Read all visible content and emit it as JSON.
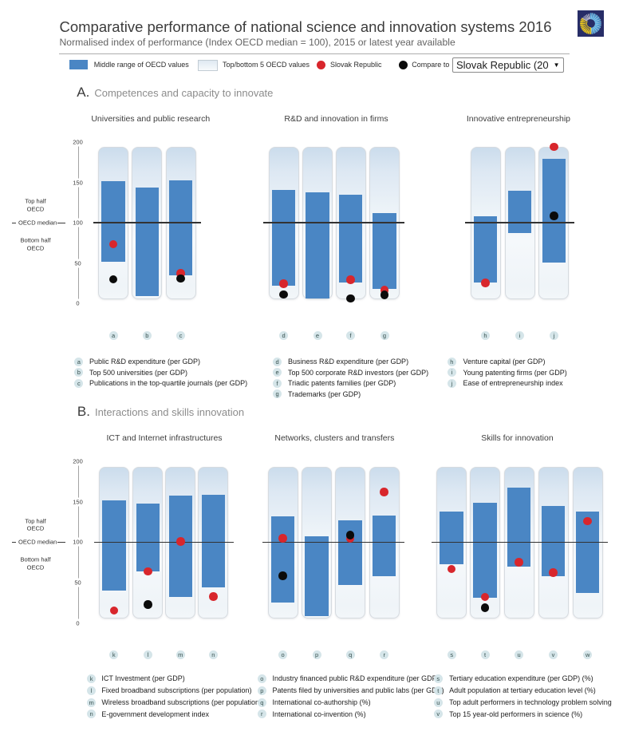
{
  "header": {
    "title": "Comparative performance of national science and innovation systems 2016",
    "subtitle": "Normalised index of performance (Index OECD median = 100), 2015 or latest year available",
    "logo": "oecd-sunburst-logo"
  },
  "legend": {
    "middle_range_label": "Middle range of OECD values",
    "top_bottom_label": "Top/bottom 5 OECD values",
    "country_label": "Slovak Republic",
    "compare_label": "Compare to",
    "compare_selected": "Slovak Republic (20"
  },
  "colors": {
    "bar_blue": "#4a86c4",
    "dot_red": "#d8262c",
    "dot_black": "#0b0b0b",
    "capsule_top": "#cbdcec",
    "capsule_bottom": "#f2f6f9",
    "median_line": "#333333",
    "logo_navy": "#272d67",
    "logo_yellow": "#f3cf19",
    "logo_blue": "#4d9fd9",
    "logo_lightblue": "#8ecbe9"
  },
  "axis": {
    "ticks": [
      200,
      150,
      100,
      50,
      0
    ],
    "top_half_line1": "Top half",
    "top_half_line2": "OECD",
    "median_label": "OECD median",
    "bottom_half_line1": "Bottom half",
    "bottom_half_line2": "OECD"
  },
  "chart_data": {
    "type": "bar",
    "title": "Comparative performance of national science and innovation systems 2016",
    "ylabel": "Normalised index (OECD median = 100)",
    "ylim": [
      0,
      200
    ],
    "legend_position": "top",
    "grid": false,
    "series_meaning": {
      "range": "Middle range of OECD values (normalised index, min-max of middle range)",
      "band": "Top/bottom 5 OECD values (capsule background)",
      "red": "Slovak Republic",
      "black": "Compare to (selected country/year)"
    },
    "sections": [
      {
        "label": "A.",
        "heading": "Competences and capacity to innovate",
        "groups": [
          {
            "title": "Universities and public research",
            "bars": [
              {
                "letter": "a",
                "note": "Public R&D expenditure (per GDP)",
                "range": [
                  51.5,
                  151.5
                ],
                "red": 73.5,
                "black": 30
              },
              {
                "letter": "b",
                "note": "Top 500 universities (per GDP)",
                "range": [
                  9.5,
                  144
                ],
                "red": null,
                "black": null
              },
              {
                "letter": "c",
                "note": "Publications in the top-quartile journals (per GDP)",
                "range": [
                  35,
                  152.5
                ],
                "red": 37.5,
                "black": 31
              }
            ]
          },
          {
            "title": "R&D and innovation in firms",
            "bars": [
              {
                "letter": "d",
                "note": "Business R&D expenditure (per GDP)",
                "range": [
                  22.5,
                  141
                ],
                "red": 24.5,
                "black": 11.5
              },
              {
                "letter": "e",
                "note": "Top 500 corporate R&D investors (per GDP)",
                "range": [
                  6.5,
                  138
                ],
                "red": null,
                "black": null
              },
              {
                "letter": "f",
                "note": "Triadic patents families (per GDP)",
                "range": [
                  26.5,
                  134.5
                ],
                "red": 29.5,
                "black": 6.5
              },
              {
                "letter": "g",
                "note": "Trademarks (per GDP)",
                "range": [
                  18,
                  112
                ],
                "red": 16.5,
                "black": 11
              }
            ]
          },
          {
            "title": "Innovative entrepreneurship",
            "bars": [
              {
                "letter": "h",
                "note": "Venture capital (per GDP)",
                "range": [
                  26,
                  108
                ],
                "red": 25.5,
                "black": null
              },
              {
                "letter": "i",
                "note": "Young patenting firms (per GDP)",
                "range": [
                  87.5,
                  140
                ],
                "red": null,
                "black": null
              },
              {
                "letter": "j",
                "note": "Ease of entrepreneurship index",
                "range": [
                  50.5,
                  179
                ],
                "red": 194,
                "black": 108.5
              }
            ]
          }
        ]
      },
      {
        "label": "B.",
        "heading": "Interactions and skills innovation",
        "groups": [
          {
            "title": "ICT and Internet infrastructures",
            "bars": [
              {
                "letter": "k",
                "note": "ICT Investment (per GDP)",
                "range": [
                  40,
                  152
                ],
                "red": 15.5,
                "black": null
              },
              {
                "letter": "l",
                "note": "Fixed broadband subscriptions (per population)",
                "range": [
                  63.5,
                  148
                ],
                "red": 64,
                "black": 23
              },
              {
                "letter": "m",
                "note": "Wireless broadband subscriptions (per population)",
                "range": [
                  32,
                  157.5
                ],
                "red": 101,
                "black": null
              },
              {
                "letter": "n",
                "note": "E-government development index",
                "range": [
                  44,
                  158.5
                ],
                "red": 32.5,
                "black": null
              }
            ]
          },
          {
            "title": "Networks, clusters and transfers",
            "bars": [
              {
                "letter": "o",
                "note": "Industry financed public R&D expenditure (per GDP)",
                "range": [
                  25.5,
                  132
                ],
                "red": 105,
                "black": 58.5
              },
              {
                "letter": "p",
                "note": "Patents filed by universities and public labs (per GDP)",
                "range": [
                  8.5,
                  107
                ],
                "red": null,
                "black": null
              },
              {
                "letter": "q",
                "note": "International co-authorship (%)",
                "range": [
                  47.5,
                  127.5
                ],
                "red": 104.5,
                "black": 109
              },
              {
                "letter": "r",
                "note": "International co-invention (%)",
                "range": [
                  58,
                  133
                ],
                "red": 162,
                "black": null
              }
            ]
          },
          {
            "title": "Skills for innovation",
            "bars": [
              {
                "letter": "s",
                "note": "Tertiary education expenditure (per GDP) (%)",
                "range": [
                  72.5,
                  137.5
                ],
                "red": 67,
                "black": null
              },
              {
                "letter": "t",
                "note": "Adult population at tertiary education level (%)",
                "range": [
                  31.5,
                  148.5
                ],
                "red": 32,
                "black": 19
              },
              {
                "letter": "u",
                "note": "Top adult performers in technology problem solving",
                "range": [
                  69.5,
                  168
                ],
                "red": 75,
                "black": null
              },
              {
                "letter": "v",
                "note": "Top 15 year-old performers in science (%)",
                "range": [
                  58,
                  145
                ],
                "red": 62.5,
                "black": null
              },
              {
                "letter": "w",
                "note": null,
                "range": [
                  37,
                  138
                ],
                "red": 126,
                "black": null
              }
            ]
          }
        ]
      }
    ]
  }
}
